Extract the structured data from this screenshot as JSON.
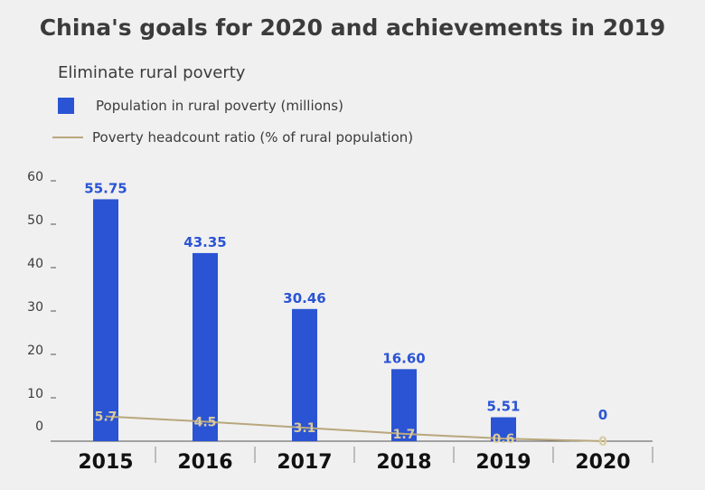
{
  "chart_data": {
    "type": "bar",
    "title": "China's goals for 2020 and achievements in 2019",
    "subtitle": "Eliminate rural poverty",
    "categories": [
      "2015",
      "2016",
      "2017",
      "2018",
      "2019",
      "2020"
    ],
    "series": [
      {
        "name": "Population in rural poverty (millions)",
        "kind": "bar",
        "color": "#2a54d4",
        "values": [
          55.75,
          43.35,
          30.46,
          16.6,
          5.51,
          0
        ],
        "labels": [
          "55.75",
          "43.35",
          "30.46",
          "16.60",
          "5.51",
          "0"
        ]
      },
      {
        "name": "Poverty headcount ratio (% of rural population)",
        "kind": "line",
        "color": "#b9a77c",
        "values": [
          5.7,
          4.5,
          3.1,
          1.7,
          0.6,
          0
        ],
        "labels": [
          "5.7",
          "4.5",
          "3.1",
          "1.7",
          "0.6",
          "0"
        ]
      }
    ],
    "yticks": [
      0,
      10,
      20,
      30,
      40,
      50,
      60
    ],
    "ylim": [
      0,
      60
    ],
    "legend_position": "top-left",
    "grid": false
  }
}
